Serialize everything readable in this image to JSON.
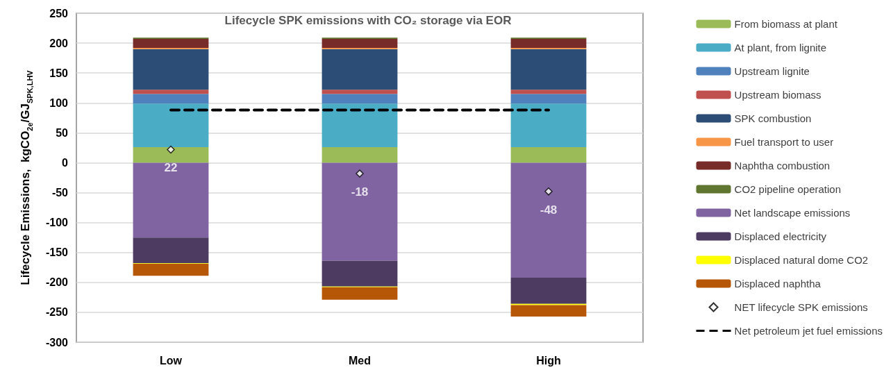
{
  "chart_data": {
    "type": "bar",
    "stacked": true,
    "title": "Lifecycle SPK emissions with CO₂ storage via EOR",
    "ylabel": "Lifecycle Emissions,  kgCO$_{2e}$/GJ$_{SPK,LHV}$",
    "categories": [
      "Low",
      "Med",
      "High"
    ],
    "ylim": [
      -300,
      250
    ],
    "yticks": [
      -300,
      -250,
      -200,
      -150,
      -100,
      -50,
      0,
      50,
      100,
      150,
      200,
      250
    ],
    "grid": "y",
    "legend": "right",
    "series": [
      {
        "name": "From biomass at plant",
        "color": "#9bbb59",
        "values": [
          26,
          26,
          26
        ]
      },
      {
        "name": "At plant, from lignite",
        "color": "#4bacc6",
        "values": [
          73,
          73,
          73
        ]
      },
      {
        "name": "Upstream lignite",
        "color": "#4f81bd",
        "values": [
          16,
          16,
          16
        ]
      },
      {
        "name": "Upstream biomass",
        "color": "#c0504d",
        "values": [
          7,
          7,
          7
        ]
      },
      {
        "name": "SPK combustion",
        "color": "#2c4d75",
        "values": [
          68,
          68,
          68
        ]
      },
      {
        "name": "Fuel transport to user",
        "color": "#f79646",
        "values": [
          2,
          2,
          2
        ]
      },
      {
        "name": "Naphtha combustion",
        "color": "#772c2a",
        "values": [
          15,
          15,
          15
        ]
      },
      {
        "name": "CO2 pipeline operation",
        "color": "#5f7530",
        "values": [
          2,
          2,
          2
        ]
      },
      {
        "name": "Net landscape emissions",
        "color": "#8064a2",
        "values": [
          -125,
          -164,
          -192
        ]
      },
      {
        "name": "Displaced electricity",
        "color": "#4d3b62",
        "values": [
          -43,
          -43,
          -44
        ]
      },
      {
        "name": "Displaced natural dome CO2",
        "color": "#ffff00",
        "values": [
          -1,
          -1,
          -2
        ]
      },
      {
        "name": "Displaced naphtha",
        "color": "#b65708",
        "values": [
          -20,
          -21,
          -19
        ]
      },
      {
        "name": "NET lifecycle SPK emissions",
        "type": "scatter",
        "marker": "diamond",
        "color": "#ffffff",
        "values": [
          22,
          -18,
          -48
        ],
        "value_labels": [
          "22",
          "-18",
          "-48"
        ]
      },
      {
        "name": "Net petroleum jet fuel emissions",
        "type": "line",
        "line_style": "dashed",
        "marker": "none",
        "color": "#000000",
        "values": [
          88,
          88,
          88
        ]
      }
    ]
  }
}
